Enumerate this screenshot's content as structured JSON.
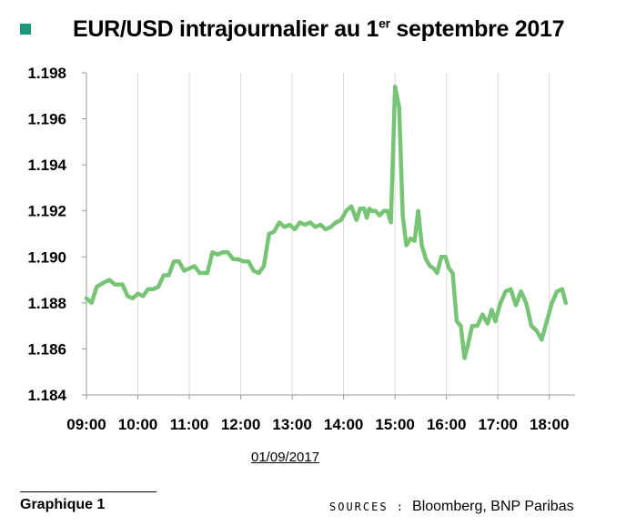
{
  "page": {
    "title_main": "EUR/USD intrajournalier au 1",
    "title_sup": "er",
    "title_tail": " septembre 2017",
    "bullet_color": "#1a9a7a",
    "date_label": "01/09/2017",
    "graph_label": "Graphique 1",
    "sources_label": "SOURCES :",
    "sources_text": "Bloomberg, BNP Paribas"
  },
  "chart_data": {
    "type": "line",
    "title": "EUR/USD intrajournalier au 1er septembre 2017",
    "xlabel": "01/09/2017",
    "ylabel": "",
    "xlim": [
      9.0,
      18.5
    ],
    "ylim": [
      1.184,
      1.198
    ],
    "x_ticks": [
      9,
      10,
      11,
      12,
      13,
      14,
      15,
      16,
      17,
      18
    ],
    "x_tick_labels": [
      "09:00",
      "10:00",
      "11:00",
      "12:00",
      "13:00",
      "14:00",
      "15:00",
      "16:00",
      "17:00",
      "18:00"
    ],
    "y_ticks": [
      1.184,
      1.186,
      1.188,
      1.19,
      1.192,
      1.194,
      1.196,
      1.198
    ],
    "y_tick_labels": [
      "1.184",
      "1.186",
      "1.188",
      "1.190",
      "1.192",
      "1.194",
      "1.196",
      "1.198"
    ],
    "grid": {
      "vertical": true,
      "horizontal": false
    },
    "line_color": "#77c477",
    "series": [
      {
        "x": [
          9.0,
          9.1,
          9.2,
          9.35,
          9.45,
          9.55,
          9.7,
          9.8,
          9.9,
          10.0,
          10.1,
          10.2,
          10.3,
          10.4,
          10.5,
          10.6,
          10.7,
          10.8,
          10.9,
          11.0,
          11.1,
          11.2,
          11.35,
          11.45,
          11.55,
          11.65,
          11.75,
          11.85,
          11.95,
          12.05,
          12.15,
          12.25,
          12.35,
          12.45,
          12.55,
          12.65,
          12.75,
          12.85,
          12.95,
          13.05,
          13.15,
          13.25,
          13.35,
          13.45,
          13.55,
          13.65,
          13.75,
          13.85,
          13.95,
          14.05,
          14.15,
          14.25,
          14.32,
          14.4,
          14.45,
          14.5,
          14.55,
          14.62,
          14.7,
          14.78,
          14.85,
          14.92,
          15.0,
          15.08,
          15.15,
          15.22,
          15.3,
          15.38,
          15.45,
          15.52,
          15.6,
          15.68,
          15.75,
          15.82,
          15.9,
          15.98,
          16.05,
          16.12,
          16.2,
          16.28,
          16.35,
          16.42,
          16.5,
          16.6,
          16.7,
          16.8,
          16.88,
          16.95,
          17.05,
          17.15,
          17.25,
          17.35,
          17.45,
          17.55,
          17.65,
          17.75,
          17.85,
          17.95,
          18.05,
          18.15,
          18.25,
          18.32
        ],
        "y": [
          1.1882,
          1.188,
          1.1887,
          1.1889,
          1.189,
          1.1888,
          1.1888,
          1.1883,
          1.1882,
          1.1884,
          1.1883,
          1.1886,
          1.1886,
          1.1887,
          1.1892,
          1.1892,
          1.1898,
          1.1898,
          1.1894,
          1.1895,
          1.1896,
          1.1893,
          1.1893,
          1.1902,
          1.1901,
          1.1902,
          1.1902,
          1.1899,
          1.1899,
          1.1898,
          1.1898,
          1.1894,
          1.1893,
          1.1896,
          1.191,
          1.1911,
          1.1915,
          1.1913,
          1.1914,
          1.1912,
          1.1915,
          1.1914,
          1.1915,
          1.1913,
          1.1914,
          1.1912,
          1.1913,
          1.1915,
          1.1916,
          1.192,
          1.1922,
          1.1916,
          1.1921,
          1.1921,
          1.1917,
          1.1921,
          1.192,
          1.192,
          1.1918,
          1.192,
          1.192,
          1.1915,
          1.1974,
          1.1965,
          1.1918,
          1.1905,
          1.1908,
          1.1907,
          1.192,
          1.1905,
          1.1899,
          1.1896,
          1.1895,
          1.1893,
          1.19,
          1.19,
          1.1895,
          1.1893,
          1.1872,
          1.187,
          1.1856,
          1.1862,
          1.187,
          1.187,
          1.1875,
          1.1871,
          1.1877,
          1.1872,
          1.188,
          1.1885,
          1.1886,
          1.1879,
          1.1885,
          1.188,
          1.187,
          1.1868,
          1.1864,
          1.1872,
          1.188,
          1.1885,
          1.1886,
          1.188
        ]
      }
    ]
  }
}
